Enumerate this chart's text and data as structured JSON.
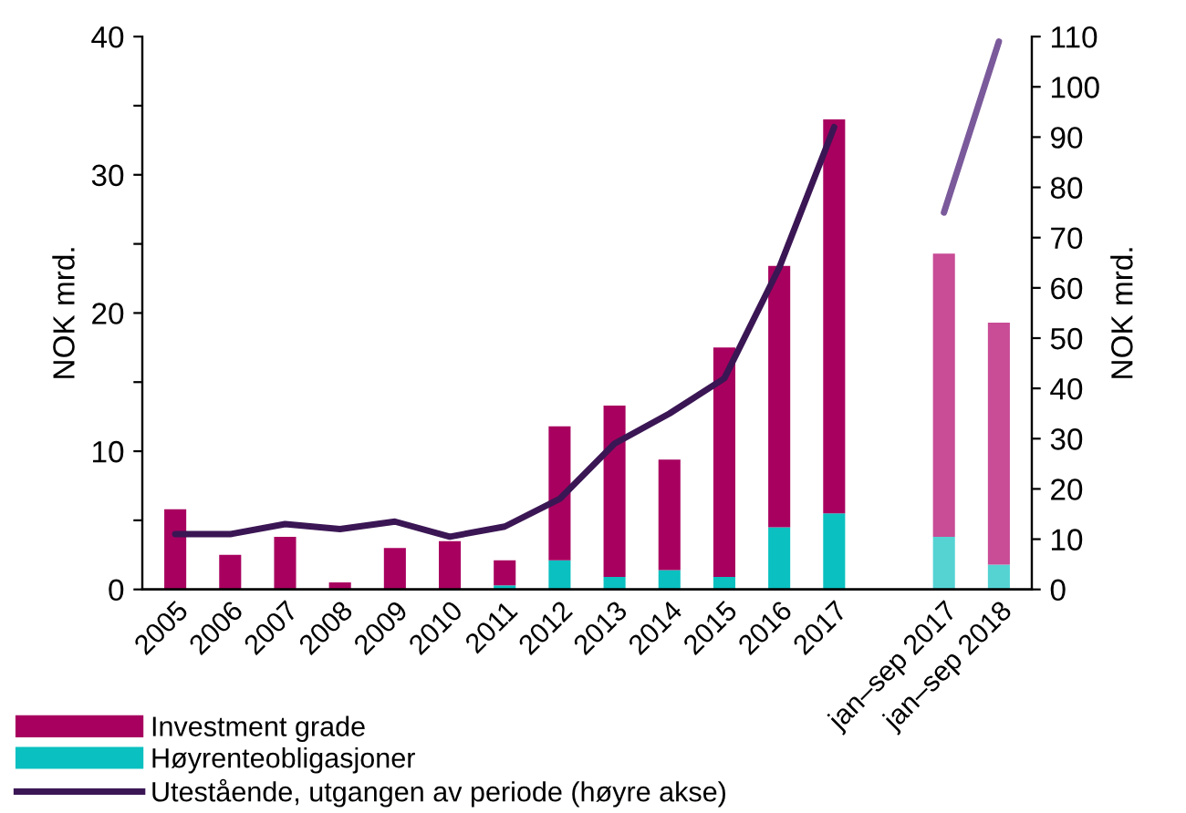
{
  "chart_data": {
    "type": "bar",
    "stacked": true,
    "ylabel": "NOK mrd.",
    "y2label": "NOK mrd.",
    "categories": [
      "2005",
      "2006",
      "2007",
      "2008",
      "2009",
      "2010",
      "2011",
      "2012",
      "2013",
      "2014",
      "2015",
      "2016",
      "2017",
      null,
      "jan–sep 2017",
      "jan–sep 2018"
    ],
    "series": [
      {
        "name": "Høyrenteobligasjoner",
        "color": "#0bc0c0",
        "colors": [
          "#0bc0c0",
          "#0bc0c0",
          "#0bc0c0",
          "#0bc0c0",
          "#0bc0c0",
          "#0bc0c0",
          "#0bc0c0",
          "#0bc0c0",
          "#0bc0c0",
          "#0bc0c0",
          "#0bc0c0",
          "#0bc0c0",
          "#0bc0c0",
          "#0bc0c0",
          "#55d3d3",
          "#55d3d3"
        ],
        "values": [
          0,
          0,
          0,
          0,
          0,
          0,
          0.3,
          2.1,
          0.9,
          1.4,
          0.9,
          4.5,
          5.5,
          null,
          3.8,
          1.8
        ]
      },
      {
        "name": "Investment grade",
        "color": "#a8005f",
        "colors": [
          "#a8005f",
          "#a8005f",
          "#a8005f",
          "#a8005f",
          "#a8005f",
          "#a8005f",
          "#a8005f",
          "#a8005f",
          "#a8005f",
          "#a8005f",
          "#a8005f",
          "#a8005f",
          "#a8005f",
          "#a8005f",
          "#c84c96",
          "#c84c96"
        ],
        "values": [
          5.8,
          2.5,
          3.8,
          0.5,
          3.0,
          3.5,
          1.8,
          9.7,
          12.4,
          8.0,
          16.6,
          18.9,
          28.5,
          null,
          20.5,
          17.5
        ]
      },
      {
        "name": "Utestående, utgangen av periode (høyre akse)",
        "type": "line",
        "axis": "y2",
        "color": "#3b1654",
        "values": [
          11,
          11,
          13,
          12,
          13.5,
          10.5,
          12.5,
          18,
          29,
          35,
          42,
          64,
          92,
          null,
          null,
          null
        ]
      },
      {
        "type": "line",
        "axis": "y2",
        "color": "#7b5a9b",
        "values": [
          null,
          null,
          null,
          null,
          null,
          null,
          null,
          null,
          null,
          null,
          null,
          null,
          null,
          null,
          75,
          109
        ]
      }
    ],
    "ylim": [
      0,
      40
    ],
    "yticks": [
      0,
      {
        "value": 5,
        "label": null
      },
      10,
      {
        "value": 15,
        "label": null
      },
      20,
      {
        "value": 25,
        "label": null
      },
      30,
      {
        "value": 35,
        "label": null
      },
      40
    ],
    "y2lim": [
      0,
      110
    ],
    "y2ticks": [
      0,
      10,
      20,
      30,
      40,
      50,
      60,
      70,
      80,
      90,
      100,
      110
    ],
    "legend": "bottom",
    "grid": false
  }
}
